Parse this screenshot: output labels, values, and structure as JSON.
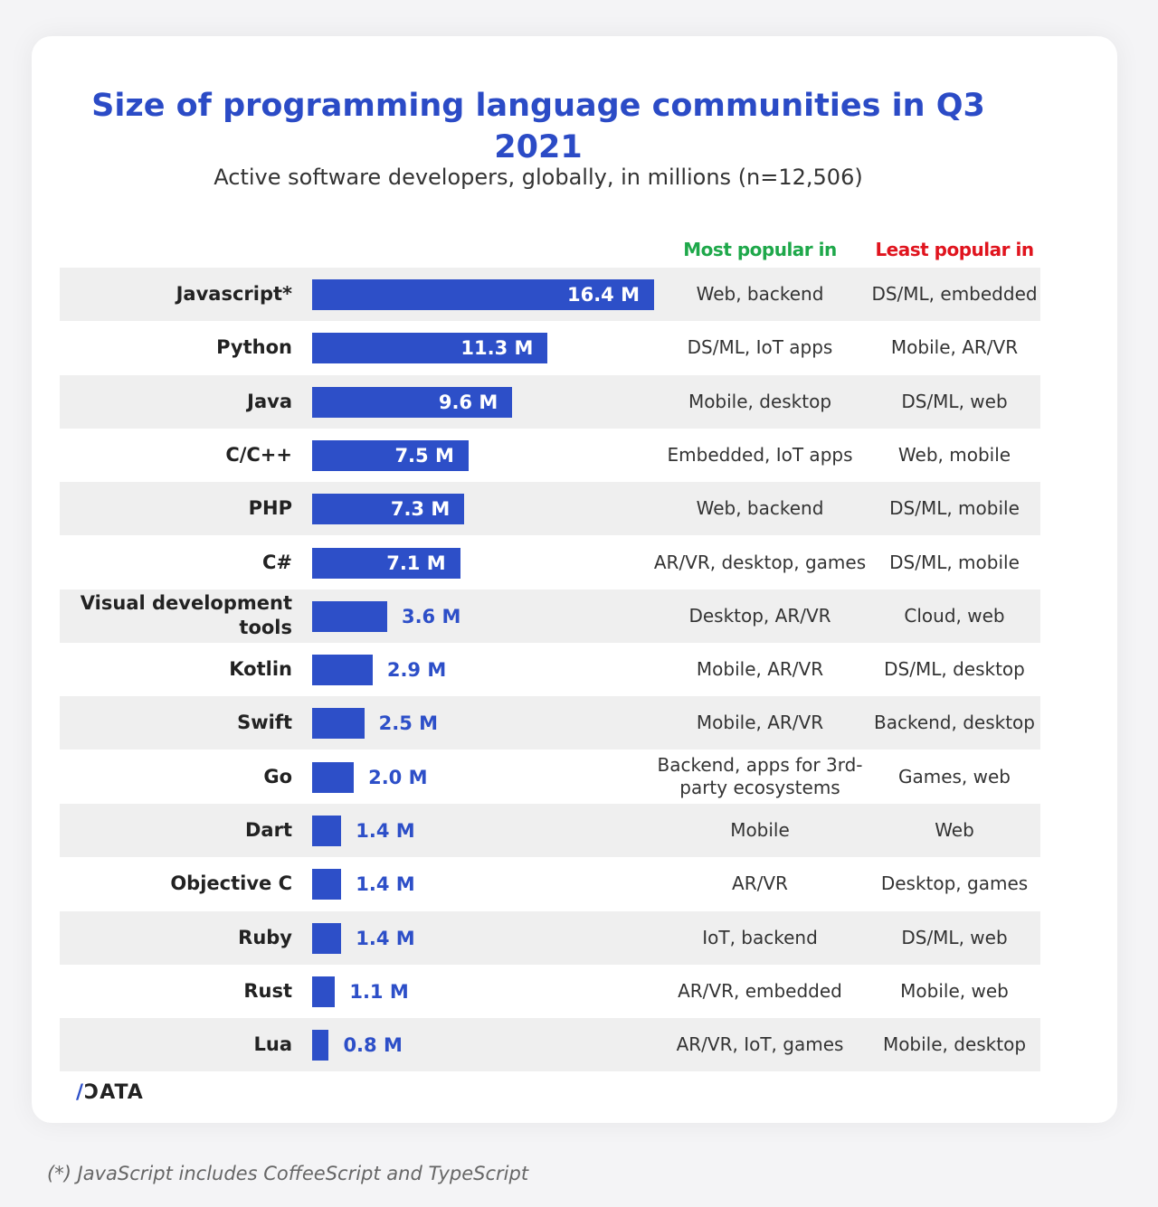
{
  "chart_data": {
    "type": "bar",
    "orientation": "horizontal",
    "title": "Size of programming language communities in Q3 2021",
    "subtitle": "Active software developers, globally, in millions (n=12,506)",
    "unit_suffix": " M",
    "columns": {
      "most_popular": "Most popular in",
      "least_popular": "Least popular in"
    },
    "categories": [
      "Javascript*",
      "Python",
      "Java",
      "C/C++",
      "PHP",
      "C#",
      "Visual development tools",
      "Kotlin",
      "Swift",
      "Go",
      "Dart",
      "Objective C",
      "Ruby",
      "Rust",
      "Lua"
    ],
    "values": [
      16.4,
      11.3,
      9.6,
      7.5,
      7.3,
      7.1,
      3.6,
      2.9,
      2.5,
      2.0,
      1.4,
      1.4,
      1.4,
      1.1,
      0.8
    ],
    "value_labels": [
      "16.4 M",
      "11.3 M",
      "9.6 M",
      "7.5 M",
      "7.3 M",
      "7.1 M",
      "3.6 M",
      "2.9 M",
      "2.5 M",
      "2.0 M",
      "1.4 M",
      "1.4 M",
      "1.4 M",
      "1.1 M",
      "0.8 M"
    ],
    "most_popular": [
      "Web, backend",
      "DS/ML, IoT apps",
      "Mobile, desktop",
      "Embedded, IoT apps",
      "Web, backend",
      "AR/VR, desktop, games",
      "Desktop, AR/VR",
      "Mobile, AR/VR",
      "Mobile, AR/VR",
      "Backend, apps for 3rd-party ecosystems",
      "Mobile",
      "AR/VR",
      "IoT, backend",
      "AR/VR, embedded",
      "AR/VR, IoT, games"
    ],
    "least_popular": [
      "DS/ML, embedded",
      "Mobile, AR/VR",
      "DS/ML, web",
      "Web, mobile",
      "DS/ML, mobile",
      "DS/ML, mobile",
      "Cloud, web",
      "DS/ML, desktop",
      "Backend, desktop",
      "Games, web",
      "Web",
      "Desktop, games",
      "DS/ML, web",
      "Mobile, web",
      "Mobile, desktop"
    ],
    "grid": false,
    "legend": "none"
  },
  "colors": {
    "bar": "#2d4fc8",
    "title": "#2b4bc6",
    "most_popular": "#1ea84a",
    "least_popular": "#e0141e"
  },
  "logo": "/DATA",
  "footnote": "(*) JavaScript includes CoffeeScript and TypeScript"
}
